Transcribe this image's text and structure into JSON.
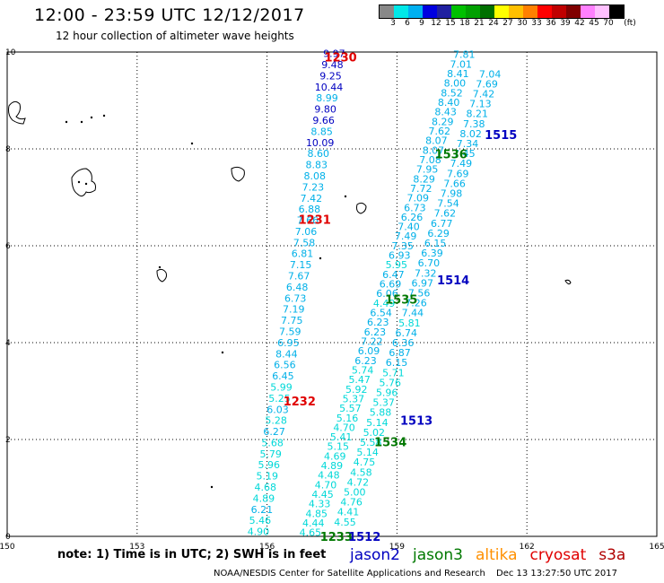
{
  "header": {
    "title": "12:00 - 23:59 UTC 12/12/2017",
    "subtitle": "12 hour collection of altimeter wave heights"
  },
  "scale": {
    "unit": "(ft)",
    "ticks": [
      "3",
      "6",
      "9",
      "12",
      "15",
      "18",
      "21",
      "24",
      "27",
      "30",
      "33",
      "36",
      "39",
      "42",
      "45",
      "70"
    ],
    "colors": [
      "#888888",
      "#00e8e8",
      "#00b0f0",
      "#0000e0",
      "#2020a0",
      "#00c000",
      "#00a000",
      "#007000",
      "#ffff00",
      "#ffc000",
      "#ff8000",
      "#ff0000",
      "#c00000",
      "#800000",
      "#ff80ff",
      "#ffc0ff",
      "#000000"
    ]
  },
  "axes": {
    "x_ticks": [
      "150",
      "153",
      "156",
      "159",
      "162",
      "165"
    ],
    "y_ticks": [
      "0",
      "2",
      "4",
      "6",
      "8",
      "10"
    ]
  },
  "colors": {
    "light_blue": "#00b0e8",
    "cyan": "#00d8d8",
    "blue": "#0000c0",
    "red": "#e00000",
    "green": "#007800",
    "orange": "#ff9000",
    "darkred": "#b00000"
  },
  "passes": [
    {
      "label": "1230",
      "sat": "cryosat",
      "lon": 157.7,
      "lat": 9.9
    },
    {
      "label": "1231",
      "sat": "cryosat",
      "lon": 157.1,
      "lat": 6.55
    },
    {
      "label": "1232",
      "sat": "cryosat",
      "lon": 156.75,
      "lat": 2.8
    },
    {
      "label": "1233",
      "sat": "jason3",
      "lon": 157.6,
      "lat": 0.0
    },
    {
      "label": "1512",
      "sat": "jason2",
      "lon": 158.25,
      "lat": 0.0
    },
    {
      "label": "1513",
      "sat": "jason2",
      "lon": 159.45,
      "lat": 2.4
    },
    {
      "label": "1514",
      "sat": "jason2",
      "lon": 160.3,
      "lat": 5.3
    },
    {
      "label": "1515",
      "sat": "jason2",
      "lon": 161.4,
      "lat": 8.3
    },
    {
      "label": "1534",
      "sat": "jason3",
      "lon": 158.85,
      "lat": 1.95
    },
    {
      "label": "1535",
      "sat": "jason3",
      "lon": 159.1,
      "lat": 4.9
    },
    {
      "label": "1536",
      "sat": "jason3",
      "lon": 160.25,
      "lat": 7.9
    }
  ],
  "tracks": [
    {
      "name": "cryosat-track",
      "lon_top": 157.55,
      "lat_top": 9.97,
      "lon_bottom": 155.8,
      "lat_bottom": 0.1,
      "values": [
        "9.97",
        "9.48",
        "9.25",
        "10.44",
        "8.99",
        "9.80",
        "9.66",
        "8.85",
        "10.09",
        "8.60",
        "8.83",
        "8.08",
        "7.23",
        "7.42",
        "6.88",
        "7.66",
        "7.06",
        "7.58",
        "6.81",
        "7.15",
        "7.67",
        "6.48",
        "6.73",
        "7.19",
        "7.75",
        "7.59",
        "6.95",
        "8.44",
        "6.56",
        "6.45",
        "5.99",
        "5.25",
        "6.03",
        "5.28",
        "6.27",
        "5.68",
        "5.79",
        "5.96",
        "5.19",
        "4.68",
        "4.89",
        "6.21",
        "5.46",
        "4.90"
      ]
    },
    {
      "name": "jason3-track-1535",
      "lon_top": 160.55,
      "lat_top": 9.95,
      "lon_bottom": 157.0,
      "lat_bottom": 0.08,
      "values": [
        "7.81",
        "7.01",
        "8.41",
        "8.00",
        "8.52",
        "8.40",
        "8.43",
        "8.29",
        "7.62",
        "8.07",
        "8.07",
        "7.08",
        "7.95",
        "8.29",
        "7.72",
        "7.09",
        "6.73",
        "6.26",
        "7.40",
        "7.49",
        "7.35",
        "6.93",
        "5.95",
        "6.47",
        "6.69",
        "6.06",
        "4.49",
        "6.54",
        "6.23",
        "6.23",
        "7.22",
        "6.09",
        "6.23",
        "5.74",
        "5.47",
        "5.92",
        "5.37",
        "5.57",
        "5.16",
        "4.70",
        "5.41",
        "5.15",
        "4.69",
        "4.89",
        "4.48",
        "4.70",
        "4.45",
        "4.33",
        "4.85",
        "4.44",
        "4.65"
      ]
    },
    {
      "name": "jason2-track-1514",
      "lon_top": 161.15,
      "lat_top": 9.55,
      "lon_bottom": 157.8,
      "lat_bottom": 0.3,
      "values": [
        "7.04",
        "7.69",
        "7.42",
        "7.13",
        "8.21",
        "7.38",
        "8.02",
        "7.34",
        "7.45",
        "7.49",
        "7.69",
        "7.66",
        "7.98",
        "7.54",
        "7.62",
        "6.77",
        "6.29",
        "6.15",
        "6.39",
        "6.70",
        "7.32",
        "6.97",
        "7.56",
        "7.26",
        "7.44",
        "5.81",
        "6.74",
        "6.36",
        "6.87",
        "6.15",
        "5.71",
        "5.76",
        "5.96",
        "5.37",
        "5.88",
        "5.14",
        "5.02",
        "5.58",
        "5.14",
        "4.75",
        "4.58",
        "4.72",
        "5.00",
        "4.76",
        "4.41",
        "4.55"
      ]
    }
  ],
  "footer": {
    "note": "note:  1) Time is in UTC;  2) SWH is in feet",
    "satellites": [
      "jason2",
      "jason3",
      "altika",
      "cryosat",
      "s3a"
    ],
    "credit": "NOAA/NESDIS Center for Satellite Applications and Research",
    "timestamp": "Dec 13 13:27:50 UTC 2017"
  }
}
